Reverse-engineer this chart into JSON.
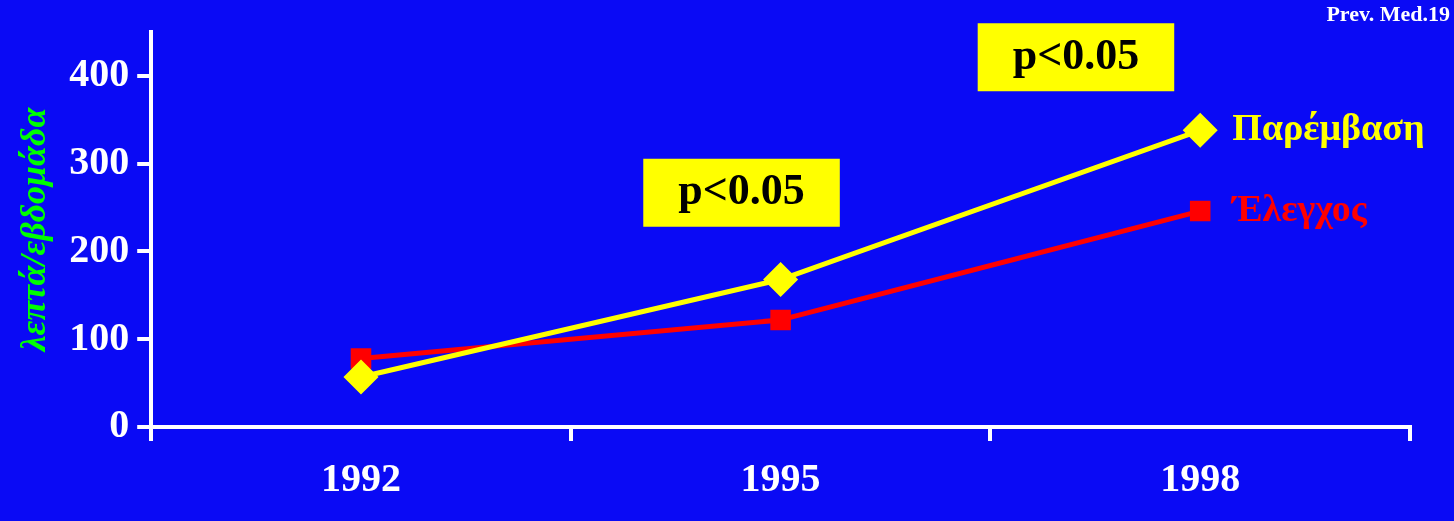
{
  "chart_data": {
    "type": "line",
    "ylabel": "λεπτά/εβδομάδα",
    "categories": [
      "1992",
      "1995",
      "1998"
    ],
    "series": [
      {
        "name": "Παρέμβαση",
        "color": "#ffff00",
        "marker": "diamond",
        "values": [
          57,
          168,
          338
        ]
      },
      {
        "name": "Έλεγχος",
        "color": "#ff0000",
        "marker": "square",
        "values": [
          78,
          122,
          246
        ]
      }
    ],
    "ylim": [
      0,
      450
    ],
    "yticks": [
      0,
      100,
      200,
      300,
      400
    ],
    "grid": false,
    "legend": false,
    "annotations": [
      "p<0.05",
      "p<0.05",
      "Prev. Med.19"
    ]
  }
}
